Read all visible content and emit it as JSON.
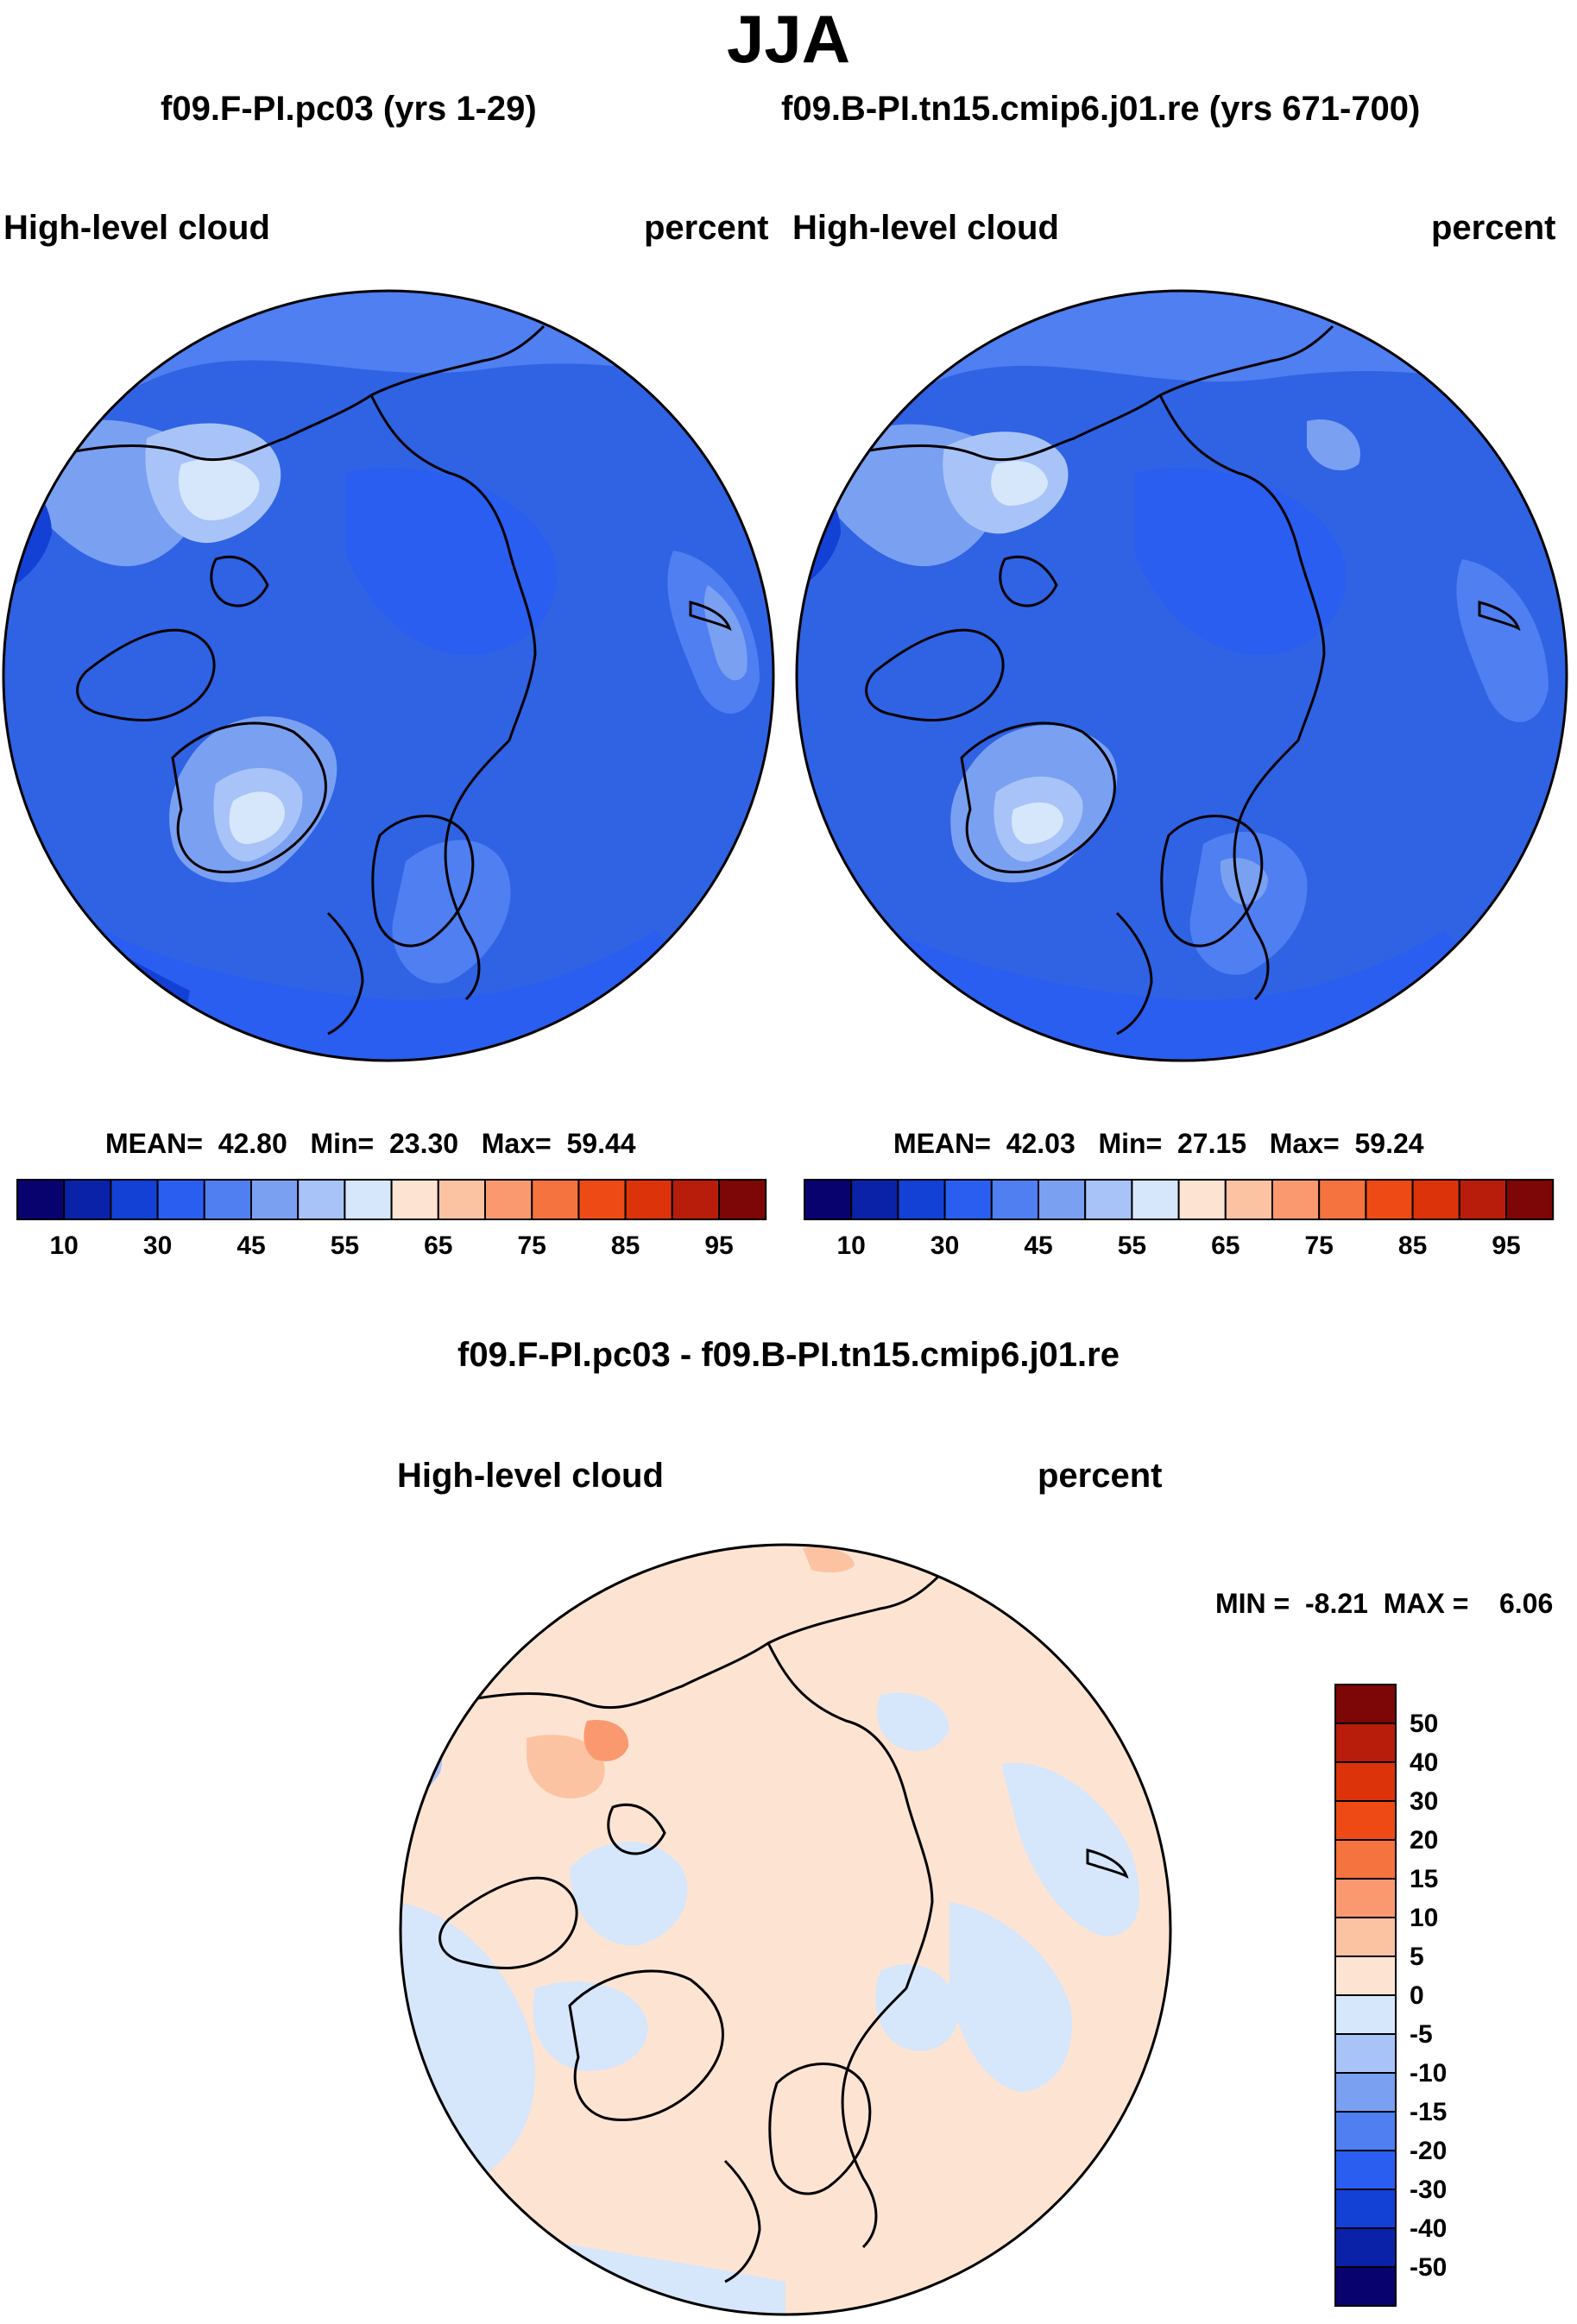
{
  "title": "JJA",
  "panels": [
    {
      "title": "f09.F-PI.pc03 (yrs 1-29)",
      "variable": "High-level cloud",
      "units": "percent",
      "stats": {
        "mean_label": "MEAN=",
        "mean": "42.80",
        "min_label": "Min=",
        "min": "23.30",
        "max_label": "Max=",
        "max": "59.44"
      }
    },
    {
      "title": "f09.B-PI.tn15.cmip6.j01.re (yrs 671-700)",
      "variable": "High-level cloud",
      "units": "percent",
      "stats": {
        "mean_label": "MEAN=",
        "mean": "42.03",
        "min_label": "Min=",
        "min": "27.15",
        "max_label": "Max=",
        "max": "59.24"
      }
    }
  ],
  "top_colorbar": {
    "colors": [
      "#08026e",
      "#0922a8",
      "#1341d6",
      "#2a5ef0",
      "#4f7ff0",
      "#7aa0f2",
      "#a8c3f7",
      "#d6e6fb",
      "#fde4d2",
      "#fcc3a3",
      "#fa9970",
      "#f5733f",
      "#ee4a16",
      "#dd330b",
      "#b81d0b",
      "#7d0606"
    ],
    "tick_labels": [
      "10",
      "30",
      "45",
      "55",
      "65",
      "75",
      "85",
      "95"
    ]
  },
  "diff_panel": {
    "title": "f09.F-PI.pc03 - f09.B-PI.tn15.cmip6.j01.re",
    "variable": "High-level cloud",
    "units": "percent",
    "stats": {
      "min_label": "MIN =",
      "min": "-8.21",
      "max_label": "MAX =",
      "max": "6.06"
    }
  },
  "diff_colorbar": {
    "colors": [
      "#7d0606",
      "#b81d0b",
      "#dd330b",
      "#ee4a16",
      "#f5733f",
      "#fa9970",
      "#fcc3a3",
      "#fde4d2",
      "#d6e6fb",
      "#a8c3f7",
      "#7aa0f2",
      "#4f7ff0",
      "#2a5ef0",
      "#1341d6",
      "#0922a8",
      "#08026e"
    ],
    "tick_labels": [
      "50",
      "40",
      "30",
      "20",
      "15",
      "10",
      "5",
      "0",
      "-5",
      "-10",
      "-15",
      "-20",
      "-30",
      "-40",
      "-50"
    ]
  },
  "map_colors": {
    "base_fields": "#2f63e4",
    "diff_field": "#fde4d2",
    "coastline": "#000000"
  }
}
